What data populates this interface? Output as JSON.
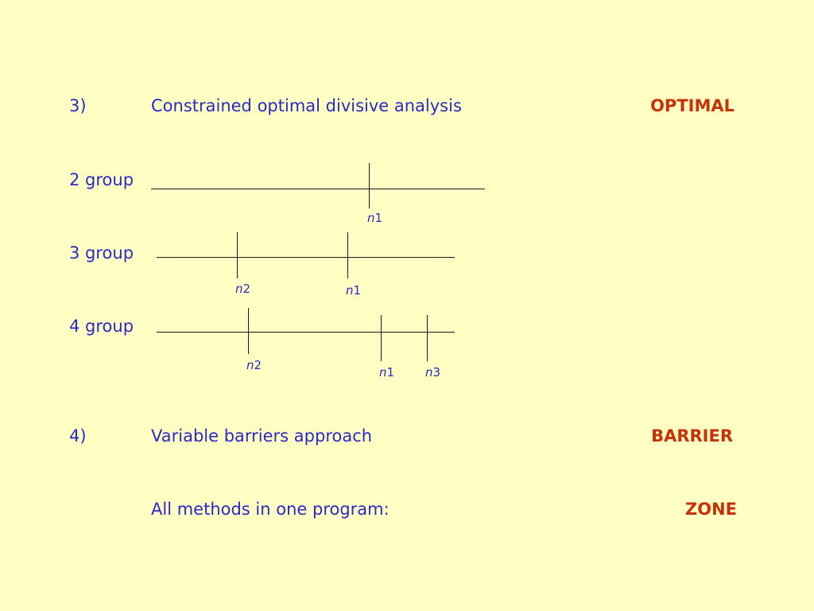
{
  "item3": {
    "number": "3)",
    "title": "Constrained optimal divisive analysis",
    "keyword": "OPTIMAL"
  },
  "groups": {
    "g2": {
      "label": "2 group",
      "ticks": [
        {
          "var": "n",
          "idx": "1"
        }
      ]
    },
    "g3": {
      "label": "3 group",
      "ticks": [
        {
          "var": "n",
          "idx": "2"
        },
        {
          "var": "n",
          "idx": "1"
        }
      ]
    },
    "g4": {
      "label": "4 group",
      "ticks": [
        {
          "var": "n",
          "idx": "2"
        },
        {
          "var": "n",
          "idx": "1"
        },
        {
          "var": "n",
          "idx": "3"
        }
      ]
    }
  },
  "item4": {
    "number": "4)",
    "title": "Variable barriers approach",
    "keyword": "BARRIER"
  },
  "summary": {
    "text": "All methods in one program:",
    "keyword": "ZONE"
  }
}
